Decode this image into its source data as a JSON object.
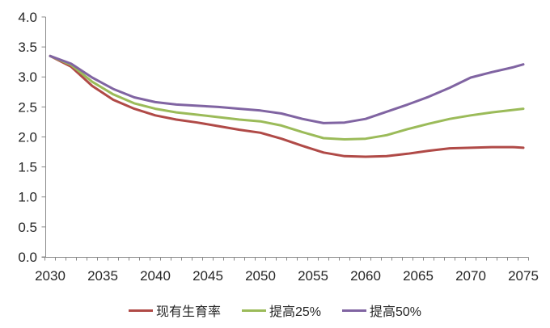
{
  "chart_data": {
    "type": "line",
    "title": "",
    "xlabel": "",
    "ylabel": "",
    "grid": false,
    "legend_position": "bottom",
    "axis_color": "#8A8A8A",
    "text_color": "#262626",
    "x": [
      2030,
      2032,
      2034,
      2036,
      2038,
      2040,
      2042,
      2044,
      2046,
      2048,
      2050,
      2052,
      2054,
      2056,
      2058,
      2060,
      2062,
      2064,
      2066,
      2068,
      2070,
      2072,
      2074,
      2075
    ],
    "x_axis": {
      "min": 2030,
      "max": 2075,
      "minor_tick_every": 1,
      "tick_labels": [
        "2030",
        "2035",
        "2040",
        "2045",
        "2050",
        "2055",
        "2060",
        "2065",
        "2070",
        "2075"
      ]
    },
    "y_axis": {
      "min": 0,
      "max": 4,
      "step": 0.5,
      "tick_labels": [
        "0.0",
        "0.5",
        "1.0",
        "1.5",
        "2.0",
        "2.5",
        "3.0",
        "3.5",
        "4.0"
      ]
    },
    "series": [
      {
        "id": "current",
        "name": "现有生育率",
        "color": "#B04A47",
        "values": [
          3.35,
          3.17,
          2.85,
          2.62,
          2.47,
          2.36,
          2.29,
          2.24,
          2.18,
          2.12,
          2.07,
          1.97,
          1.85,
          1.74,
          1.68,
          1.67,
          1.68,
          1.72,
          1.77,
          1.81,
          1.82,
          1.83,
          1.83,
          1.82
        ]
      },
      {
        "id": "plus25",
        "name": "提高25%",
        "color": "#9BBB59",
        "values": [
          3.35,
          3.2,
          2.92,
          2.71,
          2.56,
          2.47,
          2.41,
          2.37,
          2.33,
          2.29,
          2.26,
          2.19,
          2.08,
          1.98,
          1.96,
          1.97,
          2.03,
          2.13,
          2.22,
          2.3,
          2.36,
          2.41,
          2.45,
          2.47
        ]
      },
      {
        "id": "plus50",
        "name": "提高50%",
        "color": "#8064A2",
        "values": [
          3.35,
          3.22,
          2.99,
          2.8,
          2.66,
          2.58,
          2.54,
          2.52,
          2.5,
          2.47,
          2.44,
          2.39,
          2.3,
          2.23,
          2.24,
          2.3,
          2.42,
          2.54,
          2.67,
          2.82,
          2.99,
          3.08,
          3.16,
          3.21
        ]
      }
    ]
  }
}
